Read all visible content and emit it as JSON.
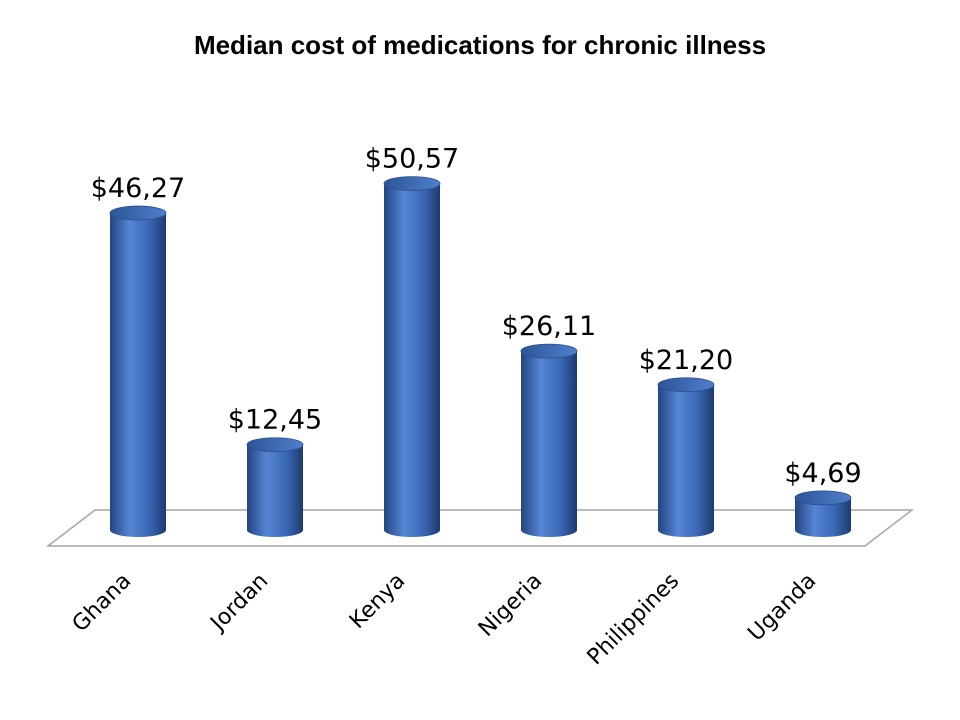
{
  "chart_data": {
    "type": "bar",
    "title": "Median cost of medications for chronic illness",
    "xlabel": "",
    "ylabel": "",
    "categories": [
      "Ghana",
      "Jordan",
      "Kenya",
      "Nigeria",
      "Philippines",
      "Uganda"
    ],
    "values": [
      46.27,
      12.45,
      50.57,
      26.11,
      21.2,
      4.69
    ],
    "data_labels": [
      "$46,27",
      "$12,45",
      "$50,57",
      "$26,11",
      "$21,20",
      "$4,69"
    ],
    "ylim": [
      0,
      55
    ],
    "grid": false,
    "legend": "none",
    "style": "3d-cylinder",
    "colors": {
      "bar": "#3f6fbf",
      "bar_dark": "#23447f",
      "bar_light": "#6c95dc",
      "floor_line": "#a6a6a6"
    }
  }
}
